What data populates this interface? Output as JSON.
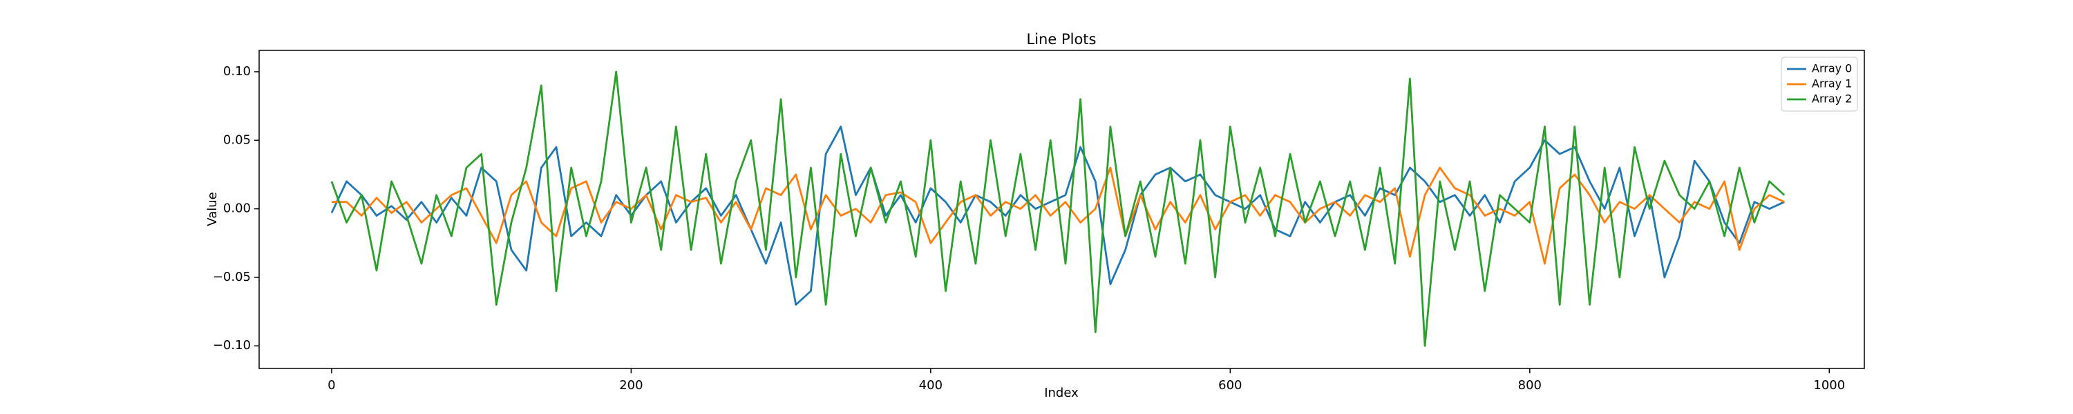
{
  "chart_data": {
    "type": "line",
    "title": "Line Plots",
    "x_label": "Index",
    "y_label": "Value",
    "x": [
      0,
      10,
      20,
      30,
      40,
      50,
      60,
      70,
      80,
      90,
      100,
      110,
      120,
      130,
      140,
      150,
      160,
      170,
      180,
      190,
      200,
      210,
      220,
      230,
      240,
      250,
      260,
      270,
      280,
      290,
      300,
      310,
      320,
      330,
      340,
      350,
      360,
      370,
      380,
      390,
      400,
      410,
      420,
      430,
      440,
      450,
      460,
      470,
      480,
      490,
      500,
      510,
      520,
      530,
      540,
      550,
      560,
      570,
      580,
      590,
      600,
      610,
      620,
      630,
      640,
      650,
      660,
      670,
      680,
      690,
      700,
      710,
      720,
      730,
      740,
      750,
      760,
      770,
      780,
      790,
      800,
      810,
      820,
      830,
      840,
      850,
      860,
      870,
      880,
      890,
      900,
      910,
      920,
      930,
      940,
      950,
      960,
      970
    ],
    "series": [
      {
        "name": "Array 0",
        "color": "#1f77b4",
        "values": [
          -0.003,
          0.02,
          0.01,
          -0.005,
          0.002,
          -0.008,
          0.005,
          -0.01,
          0.008,
          -0.005,
          0.03,
          0.02,
          -0.03,
          -0.045,
          0.03,
          0.045,
          -0.02,
          -0.01,
          -0.02,
          0.01,
          -0.005,
          0.01,
          0.02,
          -0.01,
          0.005,
          0.015,
          -0.005,
          0.01,
          -0.015,
          -0.04,
          -0.01,
          -0.07,
          -0.06,
          0.04,
          0.06,
          0.01,
          0.03,
          -0.005,
          0.01,
          -0.01,
          0.015,
          0.005,
          -0.01,
          0.01,
          0.005,
          -0.005,
          0.01,
          0.0,
          0.005,
          0.01,
          0.045,
          0.02,
          -0.055,
          -0.03,
          0.01,
          0.025,
          0.03,
          0.02,
          0.025,
          0.01,
          0.005,
          0.0,
          0.01,
          -0.015,
          -0.02,
          0.005,
          -0.01,
          0.005,
          0.01,
          -0.005,
          0.015,
          0.01,
          0.03,
          0.02,
          0.005,
          0.01,
          -0.005,
          0.01,
          -0.01,
          0.02,
          0.03,
          0.05,
          0.04,
          0.045,
          0.02,
          0.0,
          0.03,
          -0.02,
          0.01,
          -0.05,
          -0.02,
          0.035,
          0.02,
          -0.01,
          -0.025,
          0.005,
          0.0,
          0.005
        ]
      },
      {
        "name": "Array 1",
        "color": "#ff7f0e",
        "values": [
          0.005,
          0.005,
          -0.005,
          0.008,
          -0.003,
          0.005,
          -0.01,
          0.0,
          0.01,
          0.015,
          -0.005,
          -0.025,
          0.01,
          0.02,
          -0.01,
          -0.02,
          0.015,
          0.02,
          -0.01,
          0.005,
          0.0,
          0.01,
          -0.015,
          0.01,
          0.005,
          0.008,
          -0.01,
          0.005,
          -0.015,
          0.015,
          0.01,
          0.025,
          -0.015,
          0.01,
          -0.005,
          0.0,
          -0.01,
          0.01,
          0.012,
          0.005,
          -0.025,
          -0.01,
          0.005,
          0.01,
          -0.005,
          0.005,
          0.0,
          0.01,
          -0.005,
          0.005,
          -0.01,
          0.0,
          0.03,
          -0.02,
          0.01,
          -0.015,
          0.005,
          -0.01,
          0.01,
          -0.015,
          0.005,
          0.01,
          -0.005,
          0.01,
          0.005,
          -0.01,
          0.0,
          0.005,
          -0.005,
          0.01,
          0.005,
          0.015,
          -0.035,
          0.01,
          0.03,
          0.015,
          0.01,
          -0.005,
          0.0,
          -0.005,
          0.005,
          -0.04,
          0.015,
          0.025,
          0.01,
          -0.01,
          0.005,
          0.0,
          0.01,
          0.0,
          -0.01,
          0.005,
          0.0,
          0.02,
          -0.03,
          0.0,
          0.01,
          0.005
        ]
      },
      {
        "name": "Array 2",
        "color": "#2ca02c",
        "values": [
          0.02,
          -0.01,
          0.01,
          -0.045,
          0.02,
          -0.005,
          -0.04,
          0.01,
          -0.02,
          0.03,
          0.04,
          -0.07,
          -0.01,
          0.03,
          0.09,
          -0.06,
          0.03,
          -0.02,
          0.02,
          0.1,
          -0.01,
          0.03,
          -0.03,
          0.06,
          -0.03,
          0.04,
          -0.04,
          0.02,
          0.05,
          -0.03,
          0.08,
          -0.05,
          0.03,
          -0.07,
          0.04,
          -0.02,
          0.03,
          -0.01,
          0.02,
          -0.035,
          0.05,
          -0.06,
          0.02,
          -0.04,
          0.05,
          -0.02,
          0.04,
          -0.03,
          0.05,
          -0.04,
          0.08,
          -0.09,
          0.06,
          -0.02,
          0.02,
          -0.035,
          0.03,
          -0.04,
          0.05,
          -0.05,
          0.06,
          -0.01,
          0.03,
          -0.02,
          0.04,
          -0.01,
          0.02,
          -0.02,
          0.02,
          -0.03,
          0.03,
          -0.04,
          0.095,
          -0.1,
          0.02,
          -0.03,
          0.02,
          -0.06,
          0.01,
          0.0,
          -0.01,
          0.06,
          -0.07,
          0.06,
          -0.07,
          0.03,
          -0.05,
          0.045,
          0.0,
          0.035,
          0.01,
          0.0,
          0.02,
          -0.02,
          0.03,
          -0.01,
          0.02,
          0.01
        ]
      }
    ],
    "xlim": [
      -48.4,
      1023.4
    ],
    "ylim": [
      -0.1165,
      0.1156
    ],
    "xticks": [
      0,
      200,
      400,
      600,
      800,
      1000
    ],
    "yticks": [
      {
        "value": -0.1,
        "label": "−0.10"
      },
      {
        "value": -0.05,
        "label": "−0.05"
      },
      {
        "value": 0,
        "label": "0.00"
      },
      {
        "value": 0.05,
        "label": "0.05"
      },
      {
        "value": 0.1,
        "label": "0.10"
      }
    ],
    "legend": "upper right"
  }
}
